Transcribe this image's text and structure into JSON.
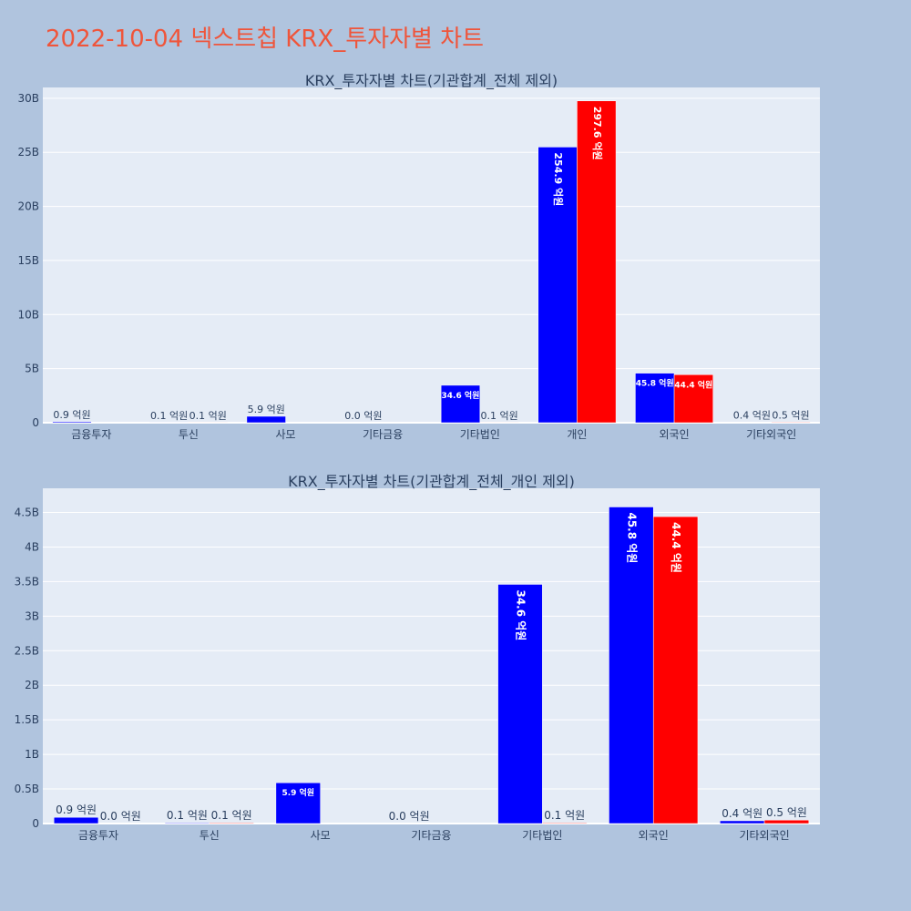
{
  "page": {
    "title": "2022-10-04 넥스트칩 KRX_투자자별 차트"
  },
  "colors": {
    "buy": "#0000ff",
    "sell": "#ff0000",
    "plot_bg": "#e5ecf6",
    "page_bg": "#b0c4de",
    "title": "#ef553b",
    "axis_text": "#2a3f5f"
  },
  "chart_data": [
    {
      "type": "bar",
      "title": "KRX_투자자별 차트(기관합계_전체 제외)",
      "categories": [
        "금융투자",
        "투신",
        "사모",
        "기타금융",
        "기타법인",
        "개인",
        "외국인",
        "기타외국인"
      ],
      "series": [
        {
          "values": [
            90000000,
            10000000,
            590000000,
            0,
            3460000000,
            25490000000,
            4580000000,
            40000000
          ],
          "labels": [
            "0.9 억원",
            "0.1 억원",
            "5.9 억원",
            "0.0 억원",
            "34.6 억원",
            "254.9 억원",
            "45.8 억원",
            "0.4 억원"
          ]
        },
        {
          "values": [
            0,
            10000000,
            0,
            0,
            10000000,
            29760000000,
            4440000000,
            50000000
          ],
          "labels": [
            "",
            "0.1 억원",
            "",
            "",
            "0.1 억원",
            "297.6 억원",
            "44.4 억원",
            "0.5 억원"
          ]
        }
      ],
      "ylim": [
        0,
        31000000000
      ],
      "yticks": [
        0,
        5000000000,
        10000000000,
        15000000000,
        20000000000,
        25000000000,
        30000000000
      ],
      "ytick_labels": [
        "0",
        "5B",
        "10B",
        "15B",
        "20B",
        "25B",
        "30B"
      ],
      "grid": true,
      "legend": "none"
    },
    {
      "type": "bar",
      "title": "KRX_투자자별 차트(기관합계_전체_개인 제외)",
      "categories": [
        "금융투자",
        "투신",
        "사모",
        "기타금융",
        "기타법인",
        "외국인",
        "기타외국인"
      ],
      "series": [
        {
          "values": [
            90000000,
            10000000,
            590000000,
            0,
            3460000000,
            4580000000,
            40000000
          ],
          "labels": [
            "0.9 억원",
            "0.1 억원",
            "5.9 억원",
            "0.0 억원",
            "34.6 억원",
            "45.8 억원",
            "0.4 억원"
          ]
        },
        {
          "values": [
            0,
            10000000,
            0,
            0,
            10000000,
            4440000000,
            50000000
          ],
          "labels": [
            "0.0 억원",
            "0.1 억원",
            "",
            "",
            "0.1 억원",
            "44.4 억원",
            "0.5 억원"
          ]
        }
      ],
      "ylim": [
        0,
        4850000000
      ],
      "yticks": [
        0,
        500000000,
        1000000000,
        1500000000,
        2000000000,
        2500000000,
        3000000000,
        3500000000,
        4000000000,
        4500000000
      ],
      "ytick_labels": [
        "0",
        "0.5B",
        "1B",
        "1.5B",
        "2B",
        "2.5B",
        "3B",
        "3.5B",
        "4B",
        "4.5B"
      ],
      "grid": true,
      "legend": "none"
    }
  ]
}
